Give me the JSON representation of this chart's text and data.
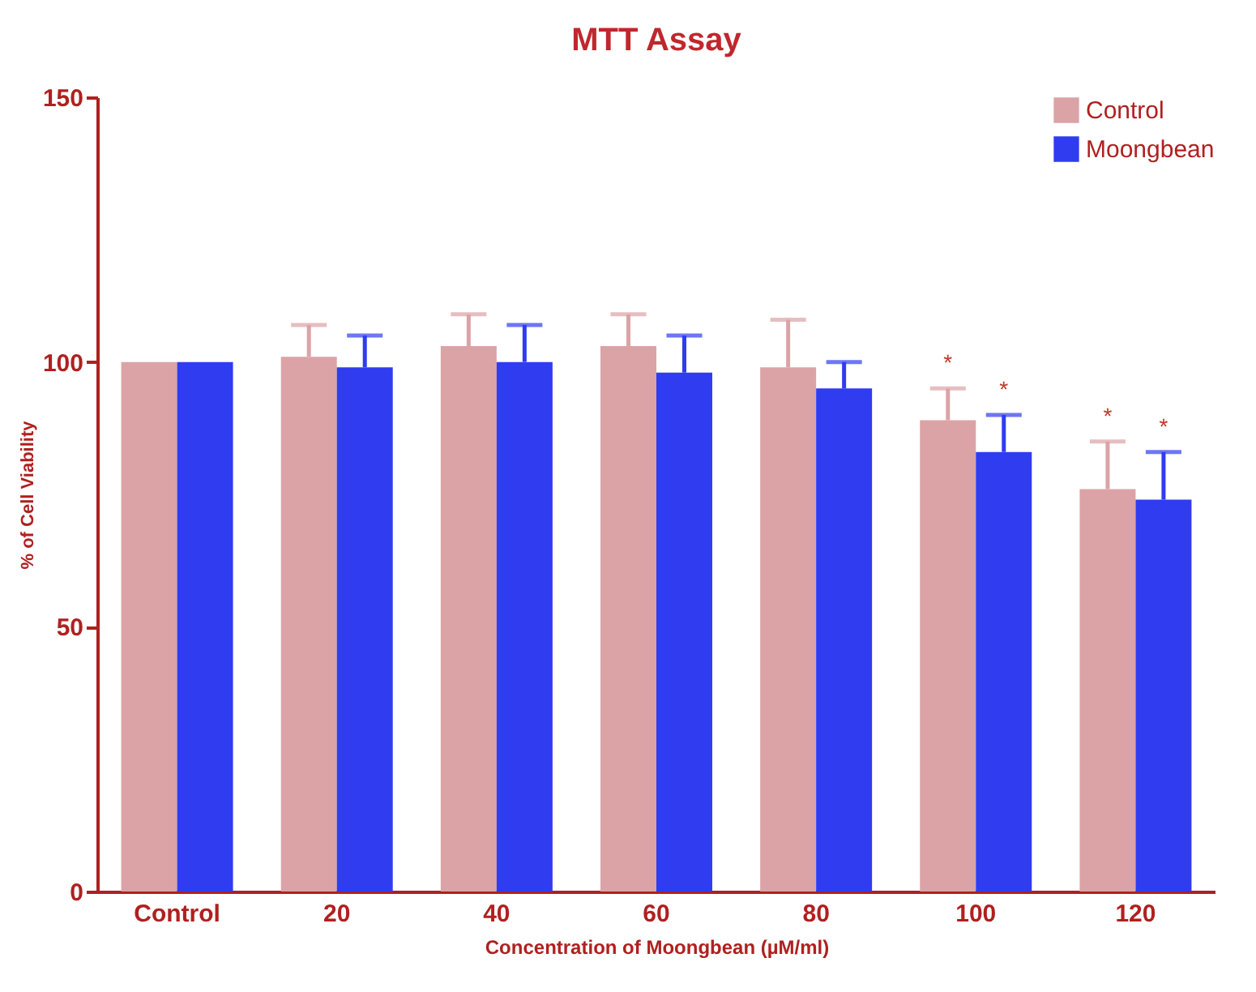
{
  "chart_data": {
    "type": "bar",
    "title": "MTT Assay",
    "xlabel": "Concentration of Moongbean (µM/ml)",
    "ylabel": "% of Cell Viability",
    "categories": [
      "Control",
      "20",
      "40",
      "60",
      "80",
      "100",
      "120"
    ],
    "series": [
      {
        "name": "Control",
        "color": "#dba3a6",
        "values": [
          100,
          101,
          103,
          103,
          99,
          89,
          76
        ],
        "errors": [
          null,
          6,
          6,
          6,
          9,
          6,
          9
        ]
      },
      {
        "name": "Moongbean",
        "color": "#2f3cf0",
        "values": [
          100,
          99,
          100,
          98,
          95,
          83,
          74
        ],
        "errors": [
          null,
          6,
          7,
          7,
          5,
          7,
          9
        ]
      }
    ],
    "annotations": [
      "*",
      "*",
      "*",
      "*"
    ],
    "ylim": [
      0,
      150
    ],
    "yticks": [
      0,
      50,
      100,
      150
    ],
    "grid": false,
    "legend": "top right"
  }
}
